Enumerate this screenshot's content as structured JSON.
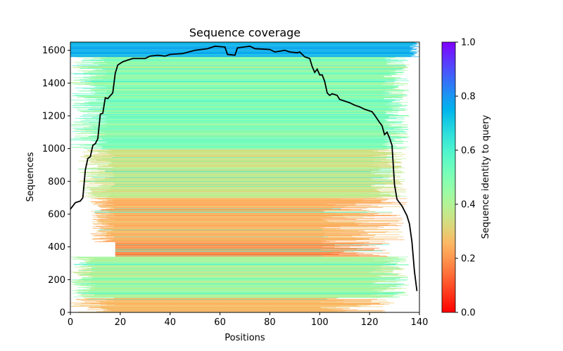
{
  "chart_data": {
    "type": "heatmap",
    "title": "Sequence coverage",
    "xlabel": "Positions",
    "ylabel": "Sequences",
    "xlim": [
      0,
      140
    ],
    "ylim": [
      0,
      1650
    ],
    "xticks": [
      0,
      20,
      40,
      60,
      80,
      100,
      120,
      140
    ],
    "yticks": [
      0,
      200,
      400,
      600,
      800,
      1000,
      1200,
      1400,
      1600
    ],
    "colorbar": {
      "label": "Sequence identity to query",
      "colormap": "rainbow_r",
      "range": [
        0,
        1
      ],
      "ticks": [
        "0.0",
        "0.2",
        "0.4",
        "0.6",
        "0.8",
        "1.0"
      ]
    },
    "bands": [
      {
        "rows": [
          0,
          90
        ],
        "identity": [
          0.22,
          0.3
        ],
        "start": [
          0,
          18
        ],
        "end": [
          100,
          130
        ]
      },
      {
        "rows": [
          90,
          340
        ],
        "identity": [
          0.33,
          0.55
        ],
        "start": [
          0,
          10
        ],
        "end": [
          120,
          136
        ]
      },
      {
        "rows": [
          340,
          430
        ],
        "identity": [
          0.14,
          0.24
        ],
        "start": [
          18,
          18
        ],
        "end": [
          100,
          130
        ]
      },
      {
        "rows": [
          430,
          700
        ],
        "identity": [
          0.2,
          0.3
        ],
        "start": [
          8,
          18
        ],
        "end": [
          100,
          135
        ]
      },
      {
        "rows": [
          700,
          1000
        ],
        "identity": [
          0.3,
          0.42
        ],
        "start": [
          3,
          18
        ],
        "end": [
          120,
          135
        ]
      },
      {
        "rows": [
          1000,
          1560
        ],
        "identity": [
          0.38,
          0.58
        ],
        "start": [
          0,
          15
        ],
        "end": [
          125,
          136
        ]
      },
      {
        "rows": [
          1560,
          1650
        ],
        "identity": [
          0.7,
          0.8
        ],
        "start": [
          0,
          0
        ],
        "end": [
          136,
          140
        ]
      }
    ],
    "coverage_line": {
      "name": "coverage",
      "color": "#000000",
      "x": [
        0,
        2,
        4,
        5,
        6,
        7,
        8,
        9,
        10,
        11,
        12,
        13,
        14,
        15,
        17,
        18,
        19,
        21,
        23,
        25,
        30,
        32,
        35,
        38,
        40,
        45,
        50,
        55,
        58,
        62,
        63,
        66,
        67,
        72,
        74,
        80,
        82,
        84,
        86,
        88,
        91,
        92,
        94,
        96,
        97,
        98,
        99,
        100,
        101,
        102,
        103,
        104,
        105,
        107,
        108,
        112,
        114,
        116,
        118,
        121,
        122,
        124,
        125,
        126,
        127,
        128,
        129,
        130,
        131,
        132,
        133,
        135,
        136,
        137,
        138,
        139
      ],
      "y": [
        630,
        670,
        680,
        700,
        870,
        940,
        950,
        1020,
        1030,
        1060,
        1210,
        1215,
        1310,
        1305,
        1340,
        1460,
        1510,
        1530,
        1540,
        1550,
        1550,
        1565,
        1570,
        1565,
        1575,
        1580,
        1600,
        1610,
        1625,
        1620,
        1575,
        1570,
        1615,
        1625,
        1610,
        1605,
        1590,
        1595,
        1600,
        1590,
        1585,
        1590,
        1560,
        1550,
        1500,
        1465,
        1485,
        1450,
        1450,
        1410,
        1340,
        1325,
        1335,
        1325,
        1300,
        1280,
        1265,
        1255,
        1240,
        1225,
        1205,
        1160,
        1140,
        1085,
        1100,
        1065,
        1020,
        780,
        690,
        670,
        650,
        590,
        540,
        430,
        250,
        130
      ]
    }
  }
}
